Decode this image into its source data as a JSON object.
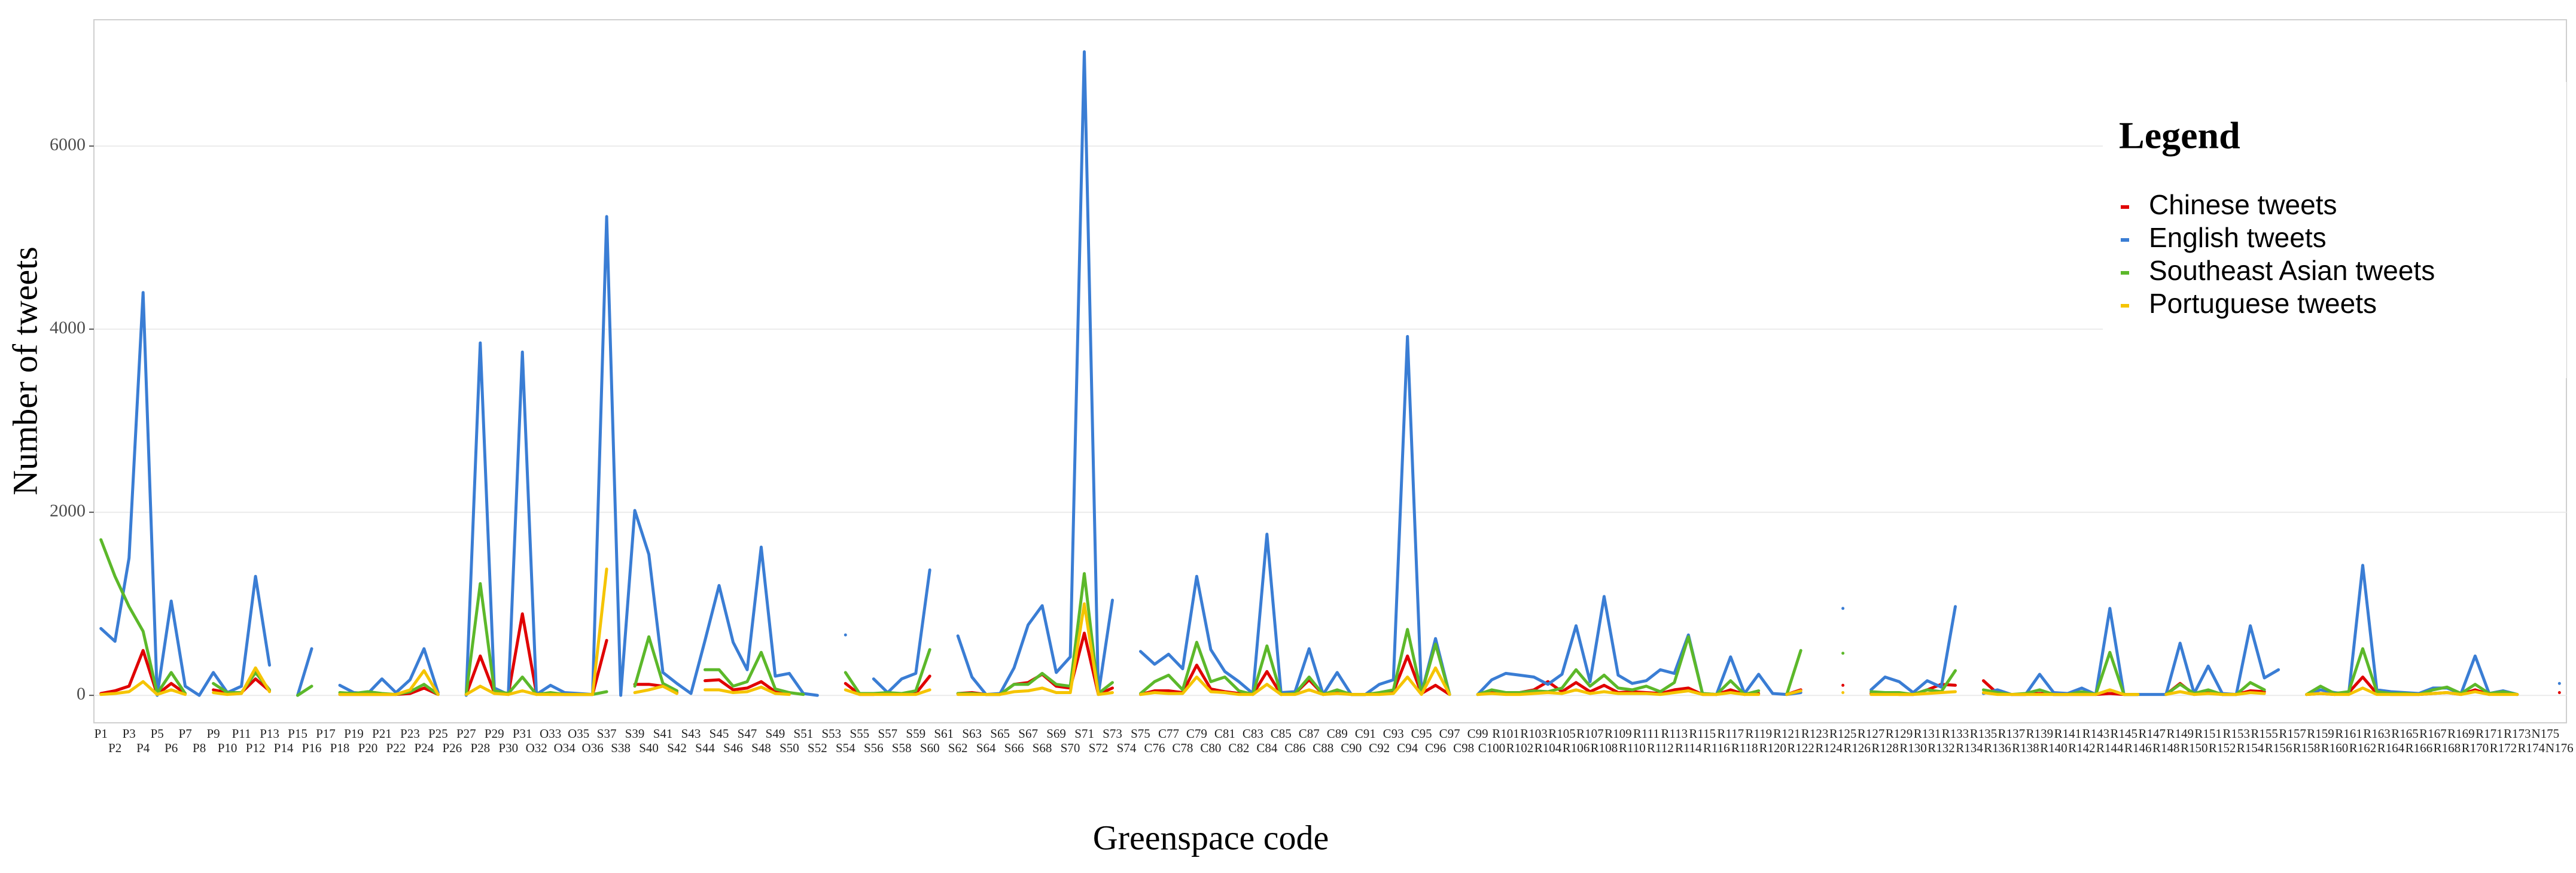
{
  "chart_data": {
    "type": "line",
    "x_label": "Greenspace code",
    "y_label": "Number of tweets",
    "legend_title": "Legend",
    "legend_position": "upper right",
    "grid": true,
    "ylim": [
      -300,
      7380
    ],
    "yticks": [
      0,
      2000,
      4000,
      6000
    ],
    "categories": [
      "P1",
      "P2",
      "P3",
      "P4",
      "P5",
      "P6",
      "P7",
      "P8",
      "P9",
      "P10",
      "P11",
      "P12",
      "P13",
      "P14",
      "P15",
      "P16",
      "P17",
      "P18",
      "P19",
      "P20",
      "P21",
      "P22",
      "P23",
      "P24",
      "P25",
      "P26",
      "P27",
      "P28",
      "P29",
      "P30",
      "P31",
      "O32",
      "O33",
      "O34",
      "O35",
      "O36",
      "S37",
      "S38",
      "S39",
      "S40",
      "S41",
      "S42",
      "S43",
      "S44",
      "S45",
      "S46",
      "S47",
      "S48",
      "S49",
      "S50",
      "S51",
      "S52",
      "S53",
      "S54",
      "S55",
      "S56",
      "S57",
      "S58",
      "S59",
      "S60",
      "S61",
      "S62",
      "S63",
      "S64",
      "S65",
      "S66",
      "S67",
      "S68",
      "S69",
      "S70",
      "S71",
      "S72",
      "S73",
      "S74",
      "S75",
      "C76",
      "C77",
      "C78",
      "C79",
      "C80",
      "C81",
      "C82",
      "C83",
      "C84",
      "C85",
      "C86",
      "C87",
      "C88",
      "C89",
      "C90",
      "C91",
      "C92",
      "C93",
      "C94",
      "C95",
      "C96",
      "C97",
      "C98",
      "C99",
      "C100",
      "R101",
      "R102",
      "R103",
      "R104",
      "R105",
      "R106",
      "R107",
      "R108",
      "R109",
      "R110",
      "R111",
      "R112",
      "R113",
      "R114",
      "R115",
      "R116",
      "R117",
      "R118",
      "R119",
      "R120",
      "R121",
      "R122",
      "R123",
      "R124",
      "R125",
      "R126",
      "R127",
      "R128",
      "R129",
      "R130",
      "R131",
      "R132",
      "R133",
      "R134",
      "R135",
      "R136",
      "R137",
      "R138",
      "R139",
      "R140",
      "R141",
      "R142",
      "R143",
      "R144",
      "R145",
      "R146",
      "R147",
      "R148",
      "R149",
      "R150",
      "R151",
      "R152",
      "R153",
      "R154",
      "R155",
      "R156",
      "R157",
      "R158",
      "R159",
      "R160",
      "R161",
      "R162",
      "R163",
      "R164",
      "R165",
      "R166",
      "R167",
      "R168",
      "R169",
      "R170",
      "R171",
      "R172",
      "R173",
      "R174",
      "N175",
      "N176"
    ],
    "series": [
      {
        "name": "Chinese tweets",
        "color": "#e00000",
        "values": [
          20,
          50,
          100,
          490,
          10,
          130,
          20,
          null,
          60,
          30,
          30,
          180,
          50,
          null,
          null,
          null,
          null,
          10,
          10,
          10,
          10,
          10,
          20,
          80,
          10,
          null,
          10,
          430,
          30,
          10,
          890,
          20,
          10,
          10,
          10,
          10,
          600,
          null,
          120,
          120,
          100,
          30,
          null,
          160,
          170,
          60,
          80,
          150,
          40,
          20,
          null,
          null,
          null,
          130,
          10,
          10,
          20,
          20,
          20,
          210,
          null,
          20,
          30,
          10,
          10,
          120,
          140,
          230,
          100,
          80,
          680,
          10,
          80,
          null,
          10,
          50,
          50,
          30,
          330,
          70,
          40,
          20,
          10,
          260,
          10,
          20,
          170,
          10,
          30,
          10,
          10,
          20,
          40,
          430,
          20,
          110,
          10,
          null,
          10,
          30,
          20,
          30,
          60,
          150,
          40,
          140,
          40,
          110,
          30,
          40,
          30,
          20,
          60,
          80,
          10,
          10,
          60,
          10,
          20,
          null,
          10,
          60,
          null,
          null,
          110,
          null,
          20,
          20,
          10,
          10,
          60,
          120,
          110,
          null,
          160,
          20,
          10,
          10,
          20,
          10,
          10,
          10,
          10,
          20,
          10,
          10,
          null,
          10,
          130,
          10,
          30,
          10,
          10,
          50,
          40,
          null,
          null,
          10,
          20,
          10,
          30,
          200,
          20,
          10,
          10,
          10,
          20,
          30,
          10,
          60,
          10,
          20,
          10,
          null,
          null,
          30
        ]
      },
      {
        "name": "English tweets",
        "color": "#3a7dd4",
        "values": [
          730,
          590,
          1500,
          4400,
          0,
          1030,
          100,
          0,
          250,
          30,
          100,
          1300,
          330,
          null,
          0,
          510,
          null,
          110,
          30,
          20,
          180,
          30,
          170,
          510,
          30,
          null,
          0,
          3850,
          80,
          10,
          3750,
          10,
          110,
          30,
          20,
          10,
          5230,
          0,
          2020,
          1540,
          250,
          130,
          20,
          600,
          1200,
          580,
          280,
          1620,
          210,
          240,
          20,
          0,
          null,
          660,
          null,
          180,
          30,
          180,
          240,
          1370,
          null,
          650,
          200,
          10,
          20,
          300,
          770,
          980,
          250,
          420,
          7030,
          10,
          1040,
          null,
          480,
          340,
          450,
          290,
          1300,
          500,
          260,
          150,
          20,
          1760,
          30,
          40,
          510,
          10,
          250,
          10,
          10,
          120,
          170,
          3920,
          20,
          620,
          10,
          null,
          10,
          170,
          240,
          220,
          200,
          120,
          230,
          760,
          150,
          1080,
          220,
          130,
          160,
          280,
          240,
          660,
          20,
          10,
          420,
          20,
          230,
          20,
          10,
          30,
          null,
          null,
          950,
          null,
          60,
          200,
          150,
          30,
          160,
          90,
          970,
          null,
          20,
          60,
          10,
          10,
          230,
          30,
          20,
          80,
          10,
          950,
          10,
          10,
          10,
          10,
          570,
          20,
          320,
          20,
          10,
          760,
          190,
          280,
          null,
          10,
          60,
          30,
          10,
          1420,
          60,
          40,
          30,
          20,
          80,
          80,
          20,
          430,
          20,
          50,
          10,
          null,
          null,
          130
        ]
      },
      {
        "name": "Southeast Asian tweets",
        "color": "#5cb82a",
        "values": [
          1700,
          1300,
          970,
          700,
          20,
          250,
          20,
          null,
          130,
          30,
          30,
          250,
          60,
          null,
          0,
          100,
          null,
          30,
          20,
          40,
          20,
          10,
          40,
          120,
          10,
          null,
          10,
          1220,
          50,
          20,
          200,
          10,
          30,
          10,
          10,
          10,
          40,
          null,
          100,
          640,
          130,
          50,
          null,
          280,
          280,
          100,
          150,
          470,
          70,
          30,
          10,
          null,
          null,
          250,
          20,
          20,
          30,
          20,
          50,
          500,
          null,
          20,
          20,
          10,
          10,
          120,
          120,
          240,
          120,
          100,
          1330,
          20,
          140,
          null,
          20,
          150,
          220,
          60,
          580,
          150,
          200,
          50,
          10,
          540,
          10,
          20,
          200,
          10,
          60,
          10,
          10,
          30,
          60,
          720,
          20,
          560,
          10,
          null,
          10,
          60,
          30,
          30,
          50,
          40,
          80,
          280,
          100,
          220,
          80,
          60,
          100,
          40,
          140,
          640,
          20,
          10,
          160,
          10,
          50,
          null,
          10,
          490,
          null,
          null,
          460,
          null,
          40,
          30,
          30,
          10,
          60,
          40,
          270,
          null,
          60,
          30,
          10,
          20,
          60,
          10,
          10,
          40,
          10,
          470,
          10,
          10,
          null,
          10,
          120,
          20,
          60,
          10,
          10,
          140,
          60,
          null,
          null,
          10,
          100,
          20,
          40,
          510,
          40,
          20,
          20,
          10,
          60,
          90,
          20,
          120,
          20,
          40,
          10,
          null,
          null,
          null
        ]
      },
      {
        "name": "Portuguese tweets",
        "color": "#f5c400",
        "values": [
          10,
          20,
          40,
          150,
          10,
          60,
          10,
          null,
          30,
          10,
          20,
          300,
          40,
          null,
          null,
          null,
          null,
          10,
          10,
          10,
          10,
          10,
          60,
          270,
          10,
          null,
          10,
          100,
          20,
          10,
          50,
          10,
          10,
          10,
          10,
          10,
          1380,
          null,
          30,
          60,
          100,
          20,
          null,
          60,
          60,
          30,
          40,
          90,
          20,
          10,
          null,
          null,
          null,
          60,
          10,
          10,
          10,
          10,
          10,
          60,
          null,
          10,
          10,
          10,
          10,
          40,
          50,
          80,
          30,
          30,
          1000,
          10,
          30,
          null,
          10,
          30,
          20,
          20,
          200,
          40,
          30,
          10,
          10,
          120,
          10,
          10,
          60,
          10,
          20,
          10,
          10,
          10,
          20,
          200,
          10,
          300,
          10,
          null,
          10,
          20,
          10,
          10,
          20,
          30,
          20,
          60,
          20,
          40,
          20,
          20,
          20,
          10,
          30,
          50,
          10,
          10,
          30,
          10,
          10,
          null,
          10,
          50,
          null,
          null,
          30,
          null,
          10,
          10,
          10,
          10,
          20,
          30,
          40,
          null,
          30,
          10,
          10,
          10,
          10,
          10,
          10,
          10,
          10,
          60,
          10,
          10,
          null,
          10,
          40,
          10,
          20,
          10,
          10,
          30,
          20,
          null,
          null,
          10,
          20,
          10,
          10,
          80,
          10,
          10,
          10,
          10,
          20,
          30,
          10,
          40,
          10,
          10,
          10,
          null,
          null,
          null
        ]
      }
    ]
  }
}
